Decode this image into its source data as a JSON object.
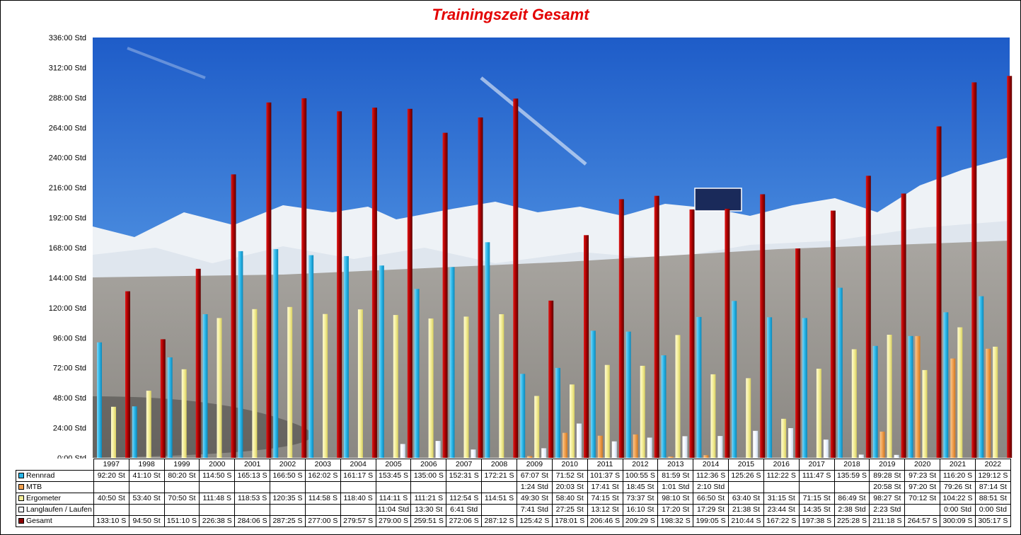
{
  "chart_data": {
    "type": "bar",
    "title": "Trainingszeit Gesamt",
    "categories": [
      "1997",
      "1998",
      "1999",
      "2000",
      "2001",
      "2002",
      "2003",
      "2004",
      "2005",
      "2006",
      "2007",
      "2008",
      "2009",
      "2010",
      "2011",
      "2012",
      "2013",
      "2014",
      "2015",
      "2016",
      "2017",
      "2018",
      "2019",
      "2020",
      "2021",
      "2022"
    ],
    "y_ticks": [
      "0:00 Std",
      "24:00 Std",
      "48:00 Std",
      "72:00 Std",
      "96:00 Std",
      "120:00 Std",
      "144:00 Std",
      "168:00 Std",
      "192:00 Std",
      "216:00 Std",
      "240:00 Std",
      "264:00 Std",
      "288:00 Std",
      "312:00 Std",
      "336:00 Std"
    ],
    "ylim": [
      0,
      336
    ],
    "grid": false,
    "legend": "table-below",
    "series": [
      {
        "name": "Rennrad",
        "color": "#29b6e8",
        "values": [
          92.33,
          41.17,
          80.33,
          114.83,
          165.22,
          166.83,
          162.03,
          161.28,
          153.75,
          135.0,
          152.52,
          172.35,
          67.12,
          71.87,
          101.62,
          100.92,
          81.98,
          112.6,
          125.43,
          112.37,
          111.78,
          135.98,
          89.47,
          97.38,
          116.33,
          129.2
        ],
        "labels": [
          "92:20 St",
          "41:10 St",
          "80:20 St",
          "114:50 S",
          "165:13 S",
          "166:50 S",
          "162:02 S",
          "161:17 S",
          "153:45 S",
          "135:00 S",
          "152:31 S",
          "172:21 S",
          "67:07 St",
          "71:52 St",
          "101:37 S",
          "100:55 S",
          "81:59 St",
          "112:36 S",
          "125:26 S",
          "112:22 S",
          "111:47 S",
          "135:59 S",
          "89:28 St",
          "97:23 St",
          "116:20 S",
          "129:12 S"
        ]
      },
      {
        "name": "MTB",
        "color": "#f0a050",
        "values": [
          0,
          0,
          0,
          0,
          0,
          0,
          0,
          0,
          0,
          0,
          0,
          0,
          1.4,
          20.05,
          17.68,
          18.75,
          1.02,
          2.17,
          0,
          0,
          0,
          0,
          20.97,
          97.33,
          79.43,
          87.23
        ],
        "labels": [
          "",
          "",
          "",
          "",
          "",
          "",
          "",
          "",
          "",
          "",
          "",
          "",
          "1:24 Std",
          "20:03 St",
          "17:41 St",
          "18:45 St",
          "1:01 Std",
          "2:10 Std",
          "",
          "",
          "",
          "",
          "20:58 St",
          "97:20 St",
          "79:26 St",
          "87:14 St"
        ]
      },
      {
        "name": "Ergometer",
        "color": "#f4ee9a",
        "values": [
          40.83,
          53.67,
          70.83,
          111.8,
          118.88,
          120.58,
          114.97,
          118.67,
          114.18,
          111.35,
          112.9,
          114.85,
          49.5,
          58.67,
          74.25,
          73.62,
          98.17,
          66.83,
          63.67,
          31.25,
          71.25,
          86.82,
          98.45,
          70.2,
          104.37,
          88.85
        ],
        "labels": [
          "40:50 St",
          "53:40 St",
          "70:50 St",
          "111:48 S",
          "118:53 S",
          "120:35 S",
          "114:58 S",
          "118:40 S",
          "114:11 S",
          "111:21 S",
          "112:54 S",
          "114:51 S",
          "49:30 St",
          "58:40 St",
          "74:15 St",
          "73:37 St",
          "98:10 St",
          "66:50 St",
          "63:40 St",
          "31:15 St",
          "71:15 St",
          "86:49 St",
          "98:27 St",
          "70:12 St",
          "104:22 S",
          "88:51 St"
        ]
      },
      {
        "name": "Langlaufen / Laufen",
        "color": "#f4f8ff",
        "values": [
          0,
          0,
          0,
          0,
          0,
          0,
          0,
          0,
          11.07,
          13.5,
          6.68,
          0,
          7.68,
          27.42,
          13.2,
          16.17,
          17.33,
          17.48,
          21.63,
          23.73,
          14.58,
          2.63,
          2.38,
          0,
          0,
          0
        ],
        "labels": [
          "",
          "",
          "",
          "",
          "",
          "",
          "",
          "",
          "11:04 Std",
          "13:30 St",
          "6:41 Std",
          "",
          "7:41 Std",
          "27:25 St",
          "13:12 St",
          "16:10 St",
          "17:20 St",
          "17:29 St",
          "21:38 St",
          "23:44 St",
          "14:35 St",
          "2:38 Std",
          "2:23 Std",
          "",
          "0:00 Std",
          "0:00 Std"
        ]
      },
      {
        "name": "Gesamt",
        "color": "#8e0000",
        "values": [
          133.17,
          94.83,
          151.17,
          226.63,
          284.1,
          287.42,
          277.0,
          279.95,
          279.0,
          259.85,
          272.1,
          287.2,
          125.7,
          178.02,
          206.77,
          209.48,
          198.53,
          199.08,
          210.73,
          167.37,
          197.63,
          225.47,
          211.3,
          264.95,
          300.15,
          305.28
        ],
        "labels": [
          "133:10 S",
          "94:50 St",
          "151:10 S",
          "226:38 S",
          "284:06 S",
          "287:25 S",
          "277:00 S",
          "279:57 S",
          "279:00 S",
          "259:51 S",
          "272:06 S",
          "287:12 S",
          "125:42 S",
          "178:01 S",
          "206:46 S",
          "209:29 S",
          "198:32 S",
          "199:05 S",
          "210:44 S",
          "167:22 S",
          "197:38 S",
          "225:28 S",
          "211:18 S",
          "264:57 S",
          "300:09 S",
          "305:17 S"
        ]
      }
    ]
  }
}
